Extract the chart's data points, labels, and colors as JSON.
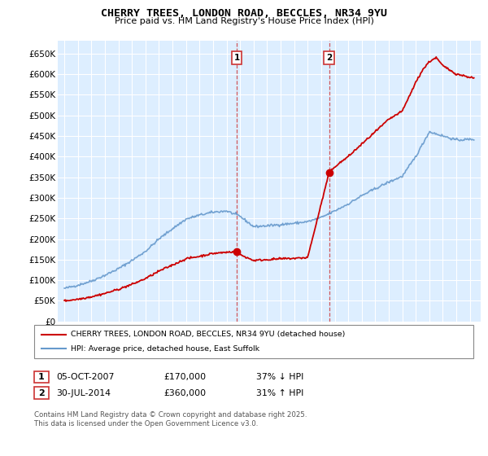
{
  "title": "CHERRY TREES, LONDON ROAD, BECCLES, NR34 9YU",
  "subtitle": "Price paid vs. HM Land Registry's House Price Index (HPI)",
  "legend_line1": "CHERRY TREES, LONDON ROAD, BECCLES, NR34 9YU (detached house)",
  "legend_line2": "HPI: Average price, detached house, East Suffolk",
  "footer": "Contains HM Land Registry data © Crown copyright and database right 2025.\nThis data is licensed under the Open Government Licence v3.0.",
  "sale1_date": "05-OCT-2007",
  "sale1_price": 170000,
  "sale1_hpi_text": "37% ↓ HPI",
  "sale2_date": "30-JUL-2014",
  "sale2_price": 360000,
  "sale2_hpi_text": "31% ↑ HPI",
  "sale1_x": 2007.76,
  "sale2_x": 2014.58,
  "hpi_color": "#6699cc",
  "price_color": "#cc0000",
  "vline_color": "#cc3333",
  "background_color": "#ddeeff",
  "grid_color": "#ffffff",
  "ylim": [
    0,
    680000
  ],
  "xlim_start": 1994.5,
  "xlim_end": 2025.8,
  "yticks": [
    0,
    50000,
    100000,
    150000,
    200000,
    250000,
    300000,
    350000,
    400000,
    450000,
    500000,
    550000,
    600000,
    650000
  ],
  "ytick_labels": [
    "£0",
    "£50K",
    "£100K",
    "£150K",
    "£200K",
    "£250K",
    "£300K",
    "£350K",
    "£400K",
    "£450K",
    "£500K",
    "£550K",
    "£600K",
    "£650K"
  ],
  "xticks": [
    1995,
    1996,
    1997,
    1998,
    1999,
    2000,
    2001,
    2002,
    2003,
    2004,
    2005,
    2006,
    2007,
    2008,
    2009,
    2010,
    2011,
    2012,
    2013,
    2014,
    2015,
    2016,
    2017,
    2018,
    2019,
    2020,
    2021,
    2022,
    2023,
    2024,
    2025
  ],
  "hpi_anchors_x": [
    1995,
    1996,
    1997,
    1998,
    1999,
    2000,
    2001,
    2002,
    2003,
    2004,
    2005,
    2006,
    2007,
    2008,
    2009,
    2010,
    2011,
    2012,
    2013,
    2014,
    2015,
    2016,
    2017,
    2018,
    2019,
    2020,
    2021,
    2022,
    2023,
    2024,
    2025.3
  ],
  "hpi_anchors_v": [
    80000,
    88000,
    98000,
    112000,
    128000,
    148000,
    170000,
    200000,
    225000,
    248000,
    258000,
    265000,
    268000,
    255000,
    230000,
    232000,
    235000,
    238000,
    242000,
    252000,
    268000,
    285000,
    305000,
    322000,
    338000,
    352000,
    400000,
    460000,
    450000,
    440000,
    442000
  ],
  "price_anchors_x": [
    1995,
    1996,
    1997,
    1998,
    1999,
    2000,
    2001,
    2002,
    2003,
    2004,
    2005,
    2006,
    2007.76,
    2008,
    2009,
    2010,
    2011,
    2012,
    2013,
    2014.58,
    2015,
    2016,
    2017,
    2018,
    2019,
    2020,
    2020.5,
    2021,
    2021.5,
    2022,
    2022.5,
    2023,
    2024,
    2025.3
  ],
  "price_anchors_v": [
    50000,
    54000,
    60000,
    68000,
    78000,
    90000,
    104000,
    122000,
    137000,
    152000,
    158000,
    165000,
    170000,
    162000,
    148000,
    150000,
    152000,
    153000,
    155000,
    360000,
    375000,
    400000,
    430000,
    460000,
    490000,
    510000,
    545000,
    580000,
    610000,
    630000,
    640000,
    620000,
    600000,
    590000
  ]
}
